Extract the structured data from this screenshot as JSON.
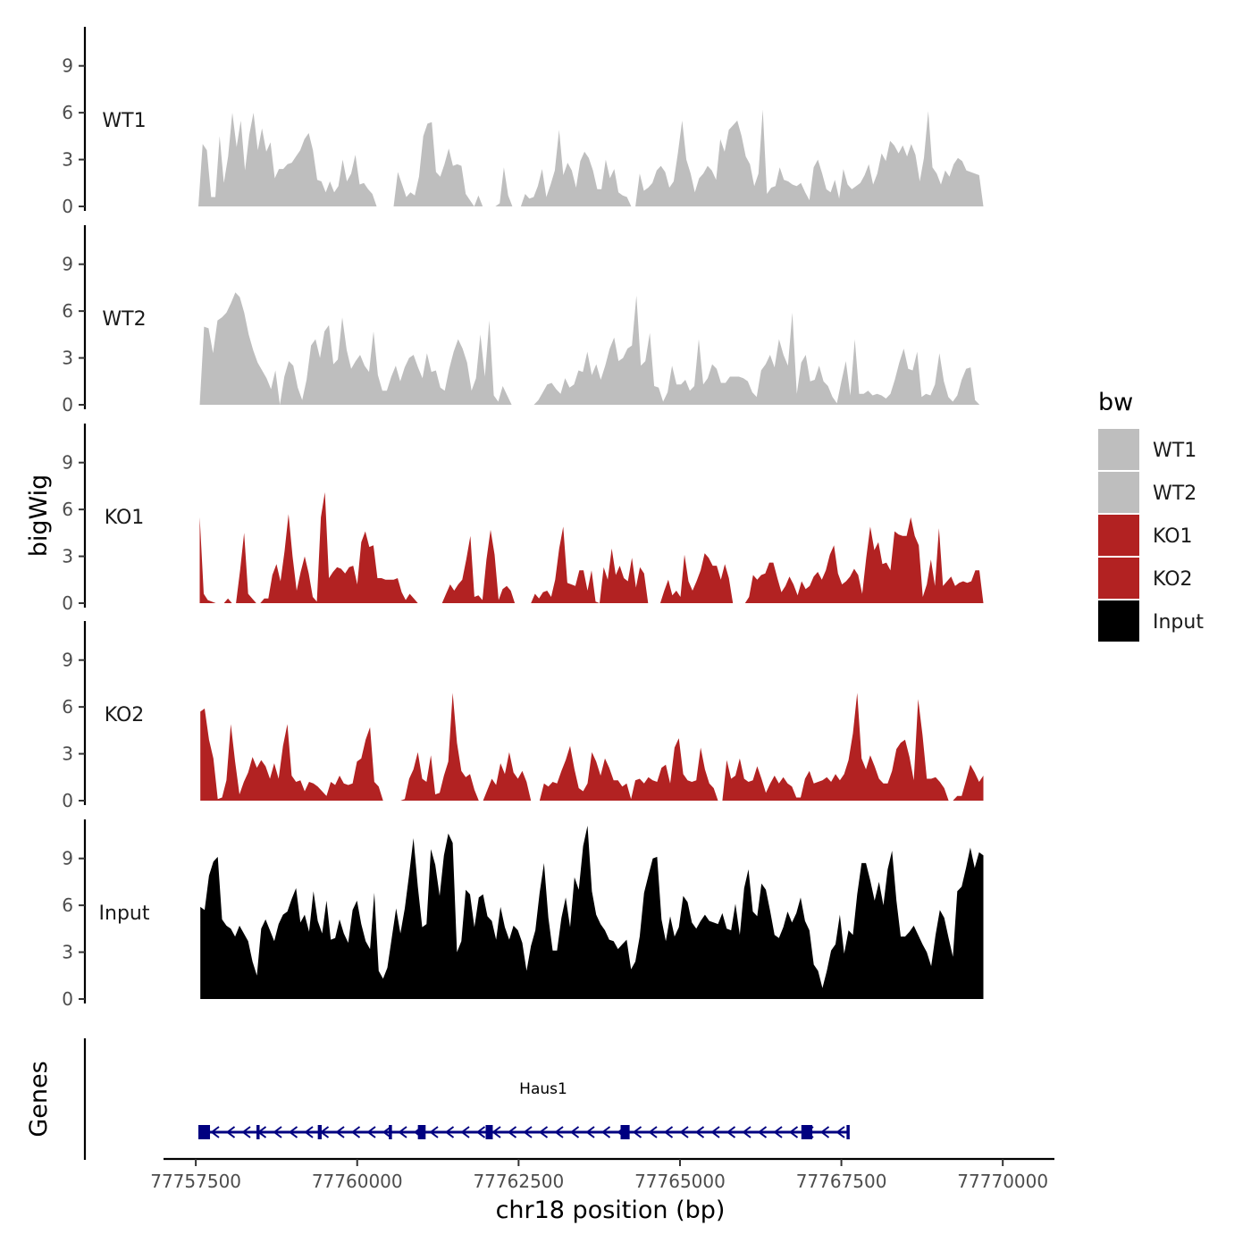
{
  "chart_data": {
    "type": "area",
    "description_title": "",
    "xlabel": "chr18 position (bp)",
    "ylabel": "bigWig",
    "genes_label": "Genes",
    "xlim": [
      77757000,
      77770800
    ],
    "ylim": [
      0,
      11.5
    ],
    "x_ticks": [
      77757500,
      77760000,
      77762500,
      77765000,
      77767500,
      77770000
    ],
    "x_tick_labels": [
      "77757500",
      "77760000",
      "77762500",
      "77765000",
      "77767500",
      "77770000"
    ],
    "y_ticks": [
      0,
      3,
      6,
      9
    ],
    "y_tick_labels": [
      "0",
      "3",
      "6",
      "9"
    ],
    "legend": {
      "title": "bw",
      "entries": [
        {
          "label": "WT1",
          "color": "#bebebe"
        },
        {
          "label": "WT2",
          "color": "#bebebe"
        },
        {
          "label": "KO1",
          "color": "#b22222"
        },
        {
          "label": "KO2",
          "color": "#b22222"
        },
        {
          "label": "Input",
          "color": "#000000"
        }
      ]
    },
    "tracks": [
      {
        "name": "WT1",
        "color": "#bebebe",
        "x_start": 77757540,
        "x_end": 77769700,
        "values": [
          0,
          4,
          3.6,
          0.6,
          0.6,
          4.5,
          1.5,
          3.2,
          6,
          3.8,
          5.5,
          2.3,
          4.6,
          6,
          3.6,
          5,
          3.5,
          4.1,
          1.8,
          2.4,
          2.4,
          2.7,
          2.8,
          3.2,
          3.6,
          4.3,
          4.7,
          3.6,
          1.7,
          1.6,
          0.9,
          1.6,
          0.9,
          1.3,
          3,
          1.6,
          2.1,
          3.3,
          1.4,
          1.5,
          1.1,
          0.8,
          0,
          0,
          0,
          0,
          0,
          2.2,
          1.4,
          0.6,
          0.9,
          0.7,
          1.9,
          4.5,
          5.3,
          5.4,
          2.2,
          1.9,
          2.7,
          3.7,
          2.6,
          2.7,
          2.6,
          0.8,
          0.4,
          0,
          0.7,
          0,
          0,
          0,
          0,
          0.2,
          2.5,
          0.7,
          0,
          0,
          0,
          0.8,
          0.5,
          0.6,
          1.3,
          2.4,
          0.6,
          1.4,
          2.3,
          4.9,
          2,
          2.8,
          2.3,
          1.2,
          2.9,
          3.5,
          3.1,
          2.3,
          1.1,
          1.1,
          3,
          1.8,
          2.4,
          0.9,
          0.7,
          0.6,
          0,
          0,
          2.1,
          1,
          1.2,
          1.5,
          2.3,
          2.6,
          2.2,
          1.2,
          1.6,
          3.4,
          5.5,
          3,
          2.1,
          0.9,
          1.8,
          2.1,
          2.6,
          2.3,
          1.7,
          4.3,
          3.5,
          4.9,
          5.2,
          5.5,
          4.5,
          3.2,
          2.7,
          1.3,
          2.1,
          6.2,
          0.8,
          1.2,
          1.3,
          2.5,
          1.7,
          1.6,
          1.4,
          1.3,
          1.5,
          0.9,
          0.4,
          2.5,
          3,
          2.1,
          1.1,
          0.9,
          1.7,
          0.5,
          2.4,
          1.4,
          1.1,
          1.3,
          1.5,
          2,
          2.7,
          1.4,
          2.1,
          3.4,
          2.9,
          4.2,
          3.9,
          3.4,
          3.9,
          3.2,
          4,
          3.3,
          1.6,
          3.1,
          6.1,
          2.5,
          2.1,
          1.4,
          2.3,
          1.9,
          2.7,
          3.1,
          2.9,
          2.3,
          2.2,
          2.1,
          2,
          0
        ]
      },
      {
        "name": "WT2",
        "color": "#bebebe",
        "x_start": 77757560,
        "x_end": 77769640,
        "values": [
          0,
          5,
          4.9,
          3.3,
          5.4,
          5.6,
          5.9,
          6.5,
          7.2,
          6.9,
          5.9,
          4.5,
          3.5,
          2.7,
          2.2,
          1.7,
          1,
          2.2,
          0,
          1.8,
          2.8,
          2.5,
          1.1,
          0.3,
          1.6,
          3.8,
          4.2,
          3,
          4.7,
          5.1,
          2.6,
          2.9,
          5.6,
          3.5,
          2.3,
          2.8,
          3.2,
          2.5,
          2.1,
          4.7,
          1.9,
          0.9,
          0.9,
          1.8,
          2.5,
          1.5,
          2.4,
          3,
          3.2,
          2.4,
          1.7,
          3.3,
          2.1,
          2.2,
          1.1,
          0.9,
          2.3,
          3.4,
          4.2,
          3.6,
          2.7,
          0.9,
          1.7,
          4.5,
          1.8,
          5.4,
          0.6,
          0.2,
          1.2,
          0.6,
          0,
          0,
          0,
          0,
          0,
          0,
          0.3,
          0.8,
          1.3,
          1.4,
          1,
          0.7,
          1.7,
          1.1,
          1.3,
          2.2,
          2.1,
          3.4,
          1.9,
          2.6,
          1.6,
          2.5,
          3.6,
          4.3,
          2.8,
          3,
          3.6,
          3.8,
          7,
          2.5,
          2.8,
          4.6,
          1.2,
          1.1,
          0.2,
          0.8,
          2.5,
          1.3,
          1.3,
          1.6,
          0.9,
          1.2,
          4.2,
          1.3,
          1.7,
          2.6,
          2.3,
          1.4,
          1.4,
          1.8,
          1.8,
          1.8,
          1.7,
          1.5,
          0.8,
          0.5,
          2.2,
          2.6,
          3.2,
          2.4,
          4.2,
          3.2,
          2.5,
          5.9,
          0.7,
          2.7,
          3.2,
          1.5,
          1.6,
          2.5,
          1.5,
          1.2,
          0.5,
          0.1,
          1.5,
          2.8,
          0.6,
          4.2,
          0.7,
          0.7,
          0.9,
          0.6,
          0.7,
          0.6,
          0.4,
          0.7,
          1.6,
          2.7,
          3.6,
          2.3,
          2.2,
          3.4,
          0.5,
          0.7,
          0.6,
          1.3,
          3.3,
          1.5,
          0.5,
          0.2,
          0.6,
          1.6,
          2.3,
          2.4,
          0.3,
          0
        ]
      },
      {
        "name": "KO1",
        "color": "#b22222",
        "x_start": 77757560,
        "x_end": 77769700,
        "values": [
          5.5,
          0.6,
          0.2,
          0.1,
          0,
          0,
          0,
          0.3,
          0,
          0,
          2.1,
          4.5,
          0.6,
          0.3,
          0,
          0,
          0.3,
          0.3,
          1.8,
          2.5,
          1.4,
          3.3,
          5.7,
          3,
          0.8,
          2,
          3,
          1.9,
          0.4,
          0.1,
          5.5,
          7.1,
          1.6,
          2,
          2.3,
          2.2,
          1.9,
          2.3,
          2.4,
          1.2,
          3.9,
          4.6,
          3.6,
          3.7,
          1.6,
          1.6,
          1.5,
          1.5,
          1.5,
          1.6,
          0.7,
          0.2,
          0.6,
          0.3,
          0,
          0,
          0,
          0,
          0,
          0,
          0,
          0.6,
          1.2,
          0.8,
          1.2,
          1.5,
          2.8,
          4.3,
          0.4,
          0.5,
          0.2,
          2.8,
          4.7,
          3.1,
          0.2,
          0.9,
          1.1,
          0.8,
          0,
          0,
          0,
          0,
          0,
          0.6,
          0.3,
          0.7,
          0.8,
          0.4,
          1.5,
          3.5,
          4.9,
          1.3,
          1.2,
          1.1,
          2.1,
          2.1,
          0.8,
          2.1,
          0.1,
          0,
          2.3,
          1.5,
          3.5,
          1.8,
          2.4,
          1.6,
          1.4,
          2.9,
          1,
          2.3,
          1.9,
          0,
          0,
          0,
          0,
          0.8,
          1.5,
          0.5,
          0.8,
          0.4,
          3.1,
          1.4,
          0.8,
          1.4,
          2.1,
          3.2,
          2.9,
          2.4,
          2.4,
          1.5,
          2.5,
          1.6,
          0,
          0,
          0,
          0,
          0.4,
          1.8,
          1.5,
          1.8,
          1.9,
          2.6,
          2.6,
          1.6,
          0.7,
          1.1,
          1.7,
          1.2,
          0.5,
          1.4,
          0.9,
          1.1,
          1.7,
          2,
          1.5,
          2.1,
          3.1,
          3.7,
          1.9,
          1.2,
          1.4,
          1.7,
          2.2,
          1.8,
          0.6,
          2.9,
          4.9,
          3.4,
          3.9,
          2.5,
          2.6,
          2.1,
          4.6,
          4.4,
          4.3,
          4.3,
          5.5,
          4.3,
          3.7,
          0.4,
          1.2,
          2.8,
          1.1,
          4.8,
          1.1,
          1.4,
          1.7,
          1.1,
          1.3,
          1.4,
          1.3,
          1.4,
          2.1,
          2.1,
          0
        ]
      },
      {
        "name": "KO2",
        "color": "#b22222",
        "x_start": 77757570,
        "x_end": 77769700,
        "values": [
          5.7,
          5.9,
          3.9,
          2.7,
          0.1,
          0.2,
          1.3,
          4.9,
          2.5,
          0.4,
          1.2,
          1.8,
          2.8,
          2.1,
          2.6,
          2.2,
          1.4,
          2.4,
          1.4,
          3.5,
          4.9,
          1.6,
          1.2,
          1.3,
          0.6,
          1.2,
          1.1,
          0.9,
          0.6,
          0.3,
          1.2,
          1,
          1.6,
          1.1,
          1,
          1.1,
          2.5,
          2.7,
          3.9,
          4.7,
          1.2,
          0.9,
          0,
          0,
          0,
          0,
          0,
          0.1,
          1.4,
          2,
          3.1,
          1.4,
          1.2,
          2.9,
          0.4,
          0.5,
          1.6,
          2.5,
          6.9,
          3.7,
          1.9,
          1.5,
          1.7,
          0.7,
          0,
          0,
          0.7,
          1.4,
          1,
          2.4,
          1.7,
          3.1,
          1.8,
          1.4,
          1.9,
          1.2,
          0,
          0,
          0,
          1.1,
          0.9,
          1.2,
          1.1,
          1.9,
          2.6,
          3.5,
          2,
          0.8,
          0.6,
          1.1,
          3.1,
          2.5,
          1.6,
          2.7,
          2.1,
          1.3,
          1.3,
          0.9,
          1.1,
          0.1,
          1.3,
          1.4,
          1.1,
          1.5,
          1.3,
          1.2,
          2.1,
          2.3,
          1.1,
          3.4,
          4,
          1.7,
          1.3,
          1.2,
          1.3,
          3.4,
          2,
          1.1,
          0.8,
          0,
          0,
          2.6,
          1.4,
          1.6,
          2.7,
          1.4,
          1.2,
          1.3,
          2.2,
          1.4,
          0.5,
          1.1,
          1.6,
          1.1,
          1.5,
          1.1,
          0.9,
          0.2,
          0.2,
          1.4,
          1.9,
          1.1,
          1.2,
          1.3,
          1.5,
          1.2,
          1.7,
          1.3,
          1.7,
          2.6,
          4.3,
          6.9,
          2.7,
          2,
          2.9,
          2.2,
          1.4,
          1.1,
          1.1,
          1.9,
          3.3,
          3.7,
          3.9,
          2.8,
          1.3,
          6.5,
          4.2,
          1.4,
          1.4,
          1.5,
          1.2,
          0.8,
          0,
          0,
          0.3,
          0.3,
          1.3,
          2.3,
          1.8,
          1.2,
          1.6
        ]
      },
      {
        "name": "Input",
        "color": "#000000",
        "x_start": 77757570,
        "x_end": 77769700,
        "values": [
          5.9,
          5.7,
          7.9,
          8.8,
          9.1,
          5.1,
          4.7,
          4.5,
          4,
          4.7,
          4.2,
          3.7,
          2.4,
          1.5,
          4.5,
          5.1,
          4.4,
          3.7,
          4.8,
          5.4,
          5.6,
          6.4,
          7.1,
          4.9,
          5.4,
          4.3,
          6.9,
          5,
          4.2,
          6.3,
          3.8,
          3.9,
          5.1,
          4.2,
          3.6,
          5.7,
          6.3,
          4.8,
          3.7,
          3.2,
          6.8,
          1.8,
          1.3,
          2,
          3.9,
          5.8,
          4.2,
          5.8,
          8,
          10.3,
          7.2,
          4.6,
          4.8,
          9.6,
          8.6,
          6.6,
          9.2,
          10.6,
          10,
          3,
          3.7,
          7,
          6.7,
          4.6,
          6.5,
          6.7,
          5.3,
          5,
          3.8,
          5.9,
          4.6,
          3.8,
          4.7,
          4.4,
          3.6,
          1.8,
          3.4,
          4.4,
          6.8,
          8.7,
          5.2,
          3.1,
          3.1,
          5.2,
          6.5,
          4.6,
          7.8,
          7,
          9.8,
          11.1,
          6.9,
          5.4,
          4.8,
          4.4,
          3.8,
          3.7,
          3.2,
          3.5,
          3.8,
          1.9,
          2.4,
          4,
          6.8,
          7.9,
          9,
          9.1,
          5.1,
          3.7,
          5.3,
          4,
          4.6,
          6.6,
          6.2,
          4.9,
          4.5,
          5,
          5.4,
          5,
          4.9,
          4.8,
          5.5,
          4.5,
          4.4,
          6.1,
          4.1,
          7.1,
          8.3,
          5.6,
          5.3,
          7.4,
          7,
          5.6,
          4.1,
          3.9,
          4.6,
          5.6,
          4.9,
          5.5,
          6.5,
          5,
          4.4,
          2.2,
          1.8,
          0.7,
          1.8,
          3.1,
          3.5,
          5.4,
          2.9,
          4.4,
          4.1,
          6.7,
          8.7,
          8.7,
          7.6,
          6.3,
          7.5,
          6,
          8.3,
          9.5,
          6.3,
          4,
          4,
          4.3,
          4.7,
          4.1,
          3.5,
          3,
          2.1,
          4.1,
          5.7,
          5.2,
          3.9,
          2.7,
          6.9,
          7.2,
          8.4,
          9.7,
          8.4,
          9.4,
          9.2
        ]
      }
    ],
    "gene": {
      "name": "Haus1",
      "strand": "-",
      "color": "#000080",
      "start": 77757540,
      "end": 77767600,
      "exons": [
        [
          77757540,
          77757720
        ],
        [
          77758440,
          77758460
        ],
        [
          77759390,
          77759450
        ],
        [
          77760490,
          77760520
        ],
        [
          77760940,
          77761060
        ],
        [
          77761990,
          77762100
        ],
        [
          77764080,
          77764220
        ],
        [
          77766880,
          77767050
        ],
        [
          77767580,
          77767600
        ]
      ]
    }
  }
}
